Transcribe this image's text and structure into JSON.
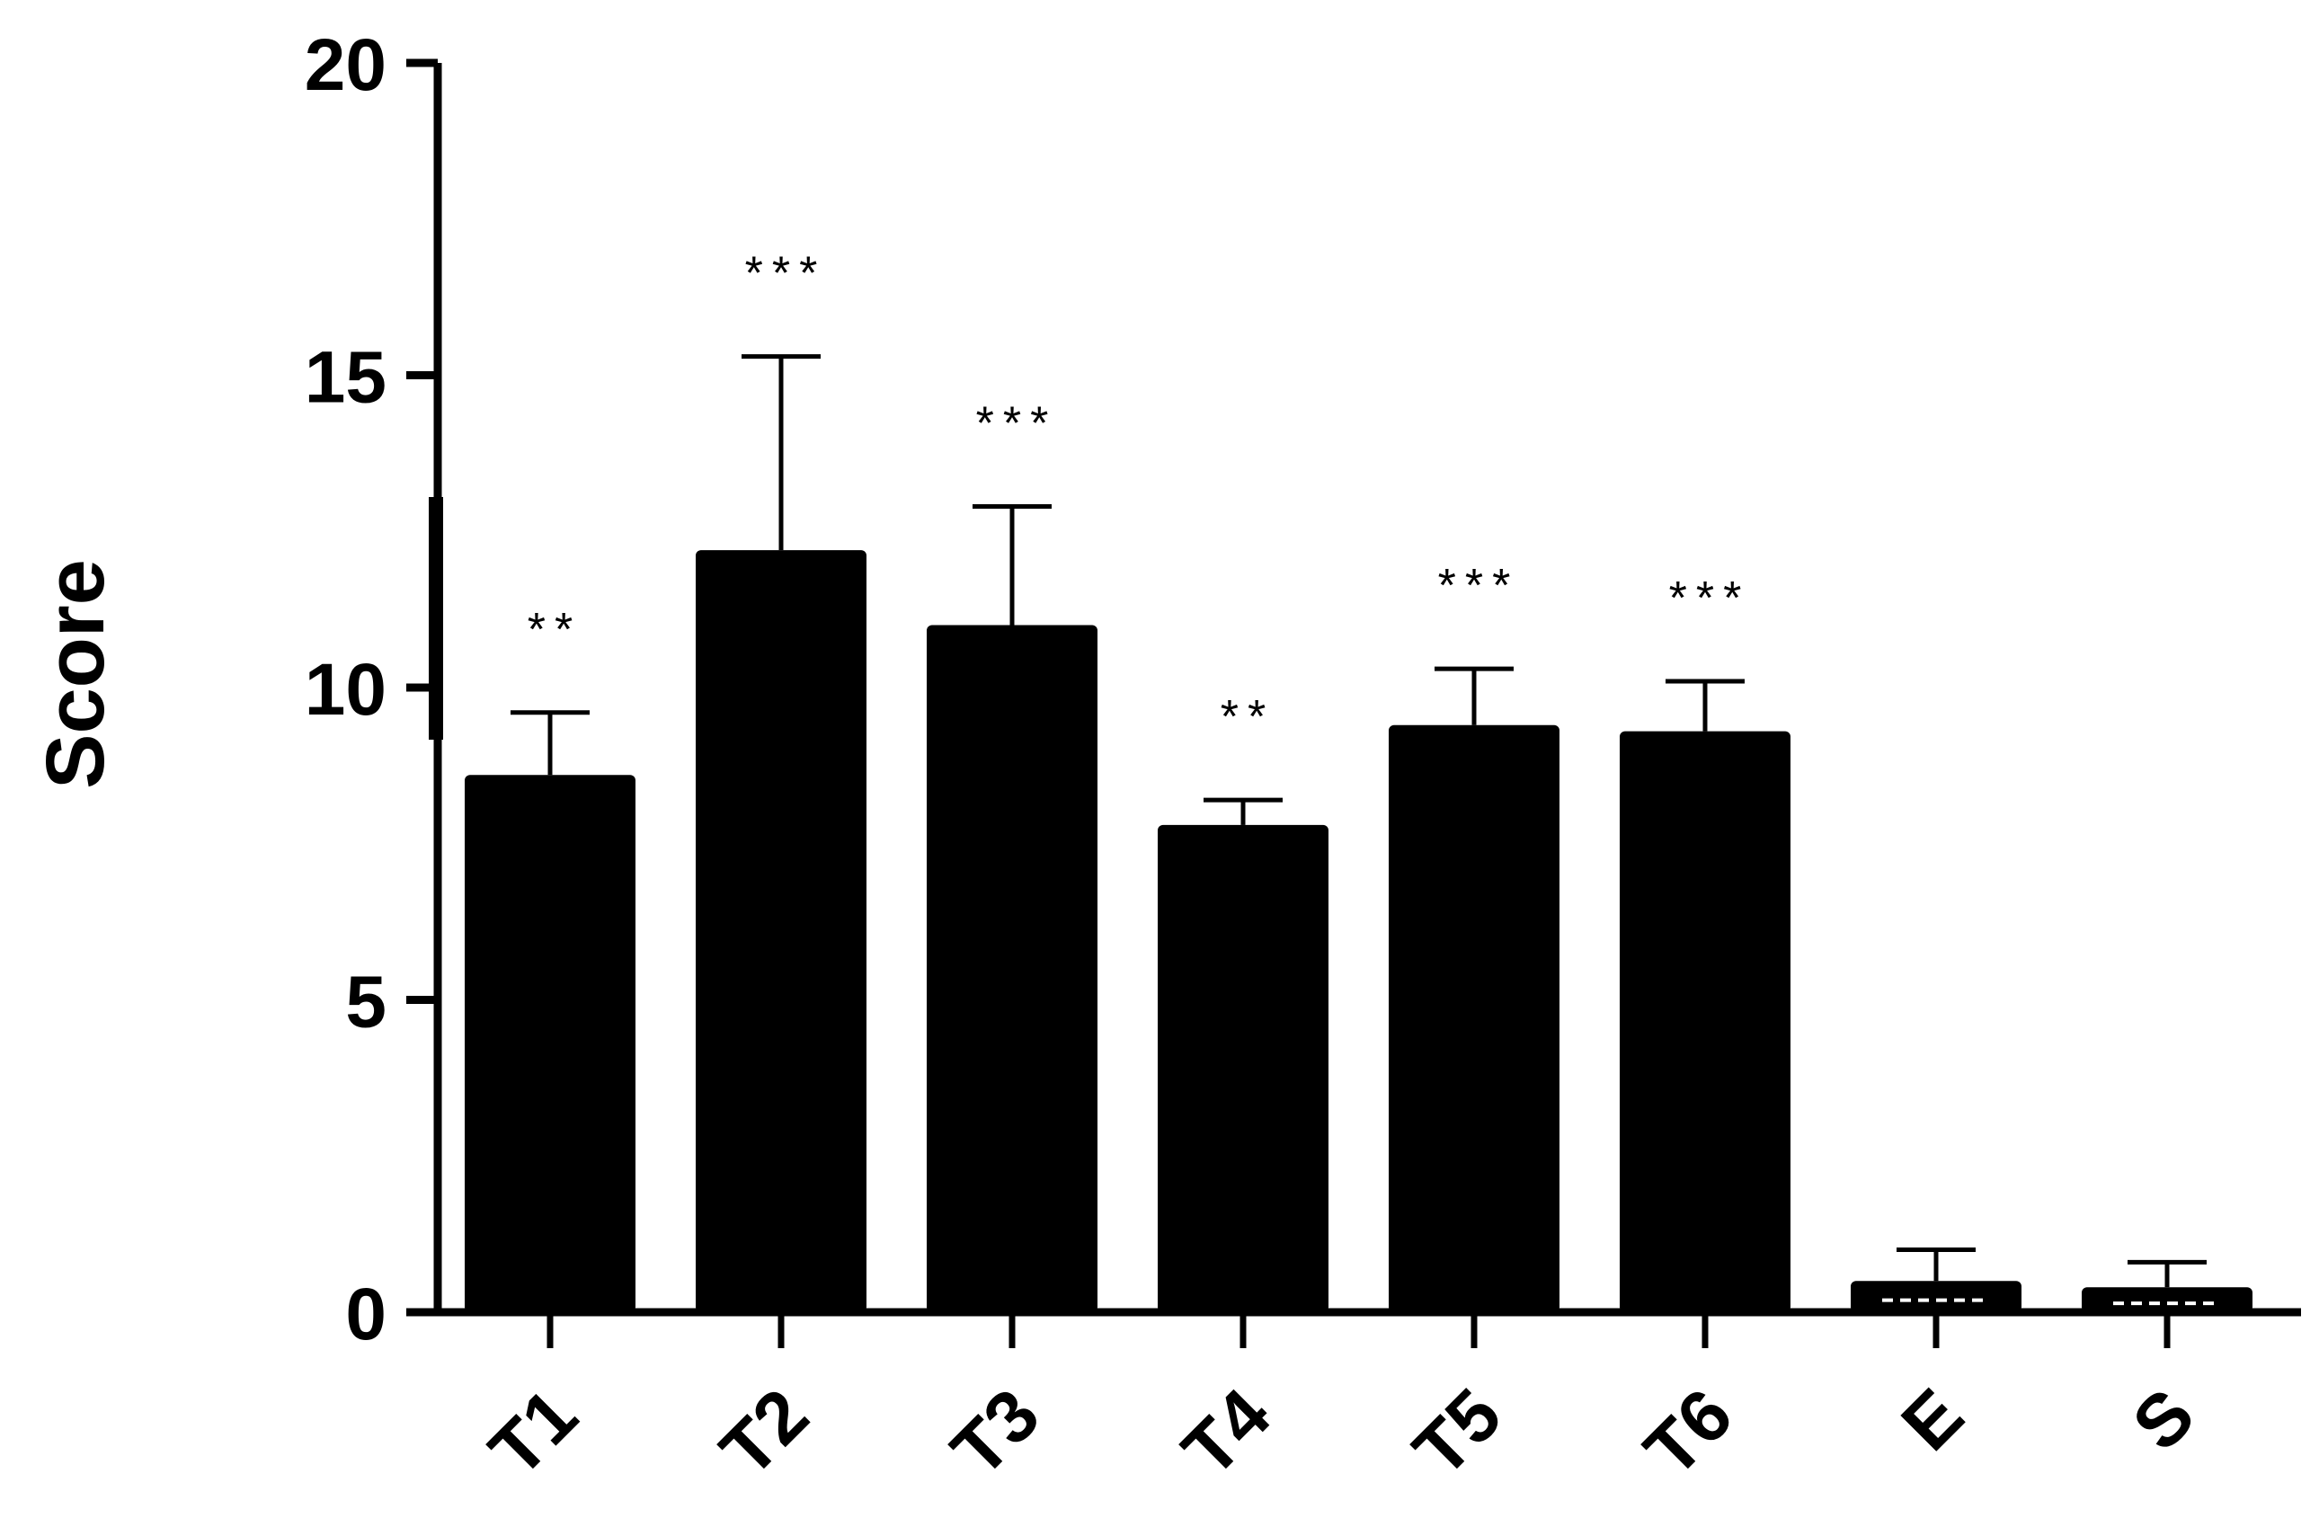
{
  "chart_data": {
    "type": "bar",
    "title": "",
    "xlabel": "",
    "ylabel": "Score",
    "ylim": [
      0,
      20
    ],
    "yticks": [
      0,
      5,
      10,
      15,
      20
    ],
    "grid": false,
    "bar_color": "#000000",
    "categories": [
      "T1",
      "T2",
      "T3",
      "T4",
      "T5",
      "T6",
      "E",
      "S"
    ],
    "values": [
      8.6,
      12.2,
      11.0,
      7.8,
      9.4,
      9.3,
      0.5,
      0.4
    ],
    "error_upper": [
      9.6,
      15.3,
      12.9,
      8.2,
      10.3,
      10.1,
      1.0,
      0.8
    ],
    "significance": [
      "**",
      "***",
      "***",
      "**",
      "***",
      "***",
      "",
      ""
    ]
  }
}
